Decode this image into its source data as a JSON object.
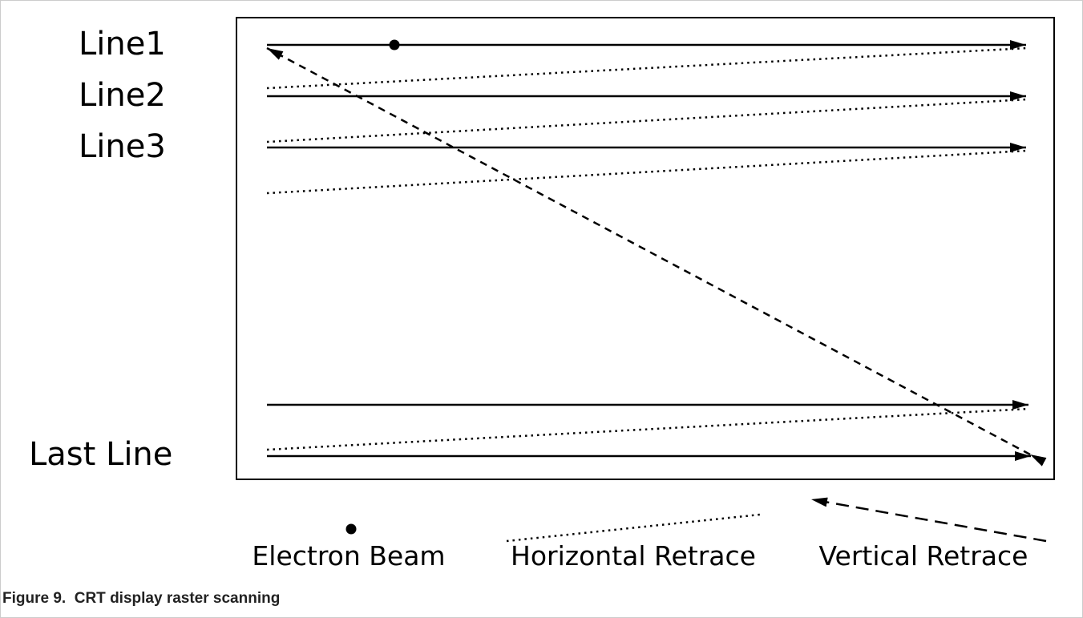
{
  "diagram": {
    "line_labels": [
      "Line1",
      "Line2",
      "Line3",
      "Last Line"
    ],
    "legend": [
      "Electron Beam",
      "Horizontal Retrace",
      "Vertical Retrace"
    ],
    "caption": "Figure 9.  CRT display raster scanning"
  }
}
